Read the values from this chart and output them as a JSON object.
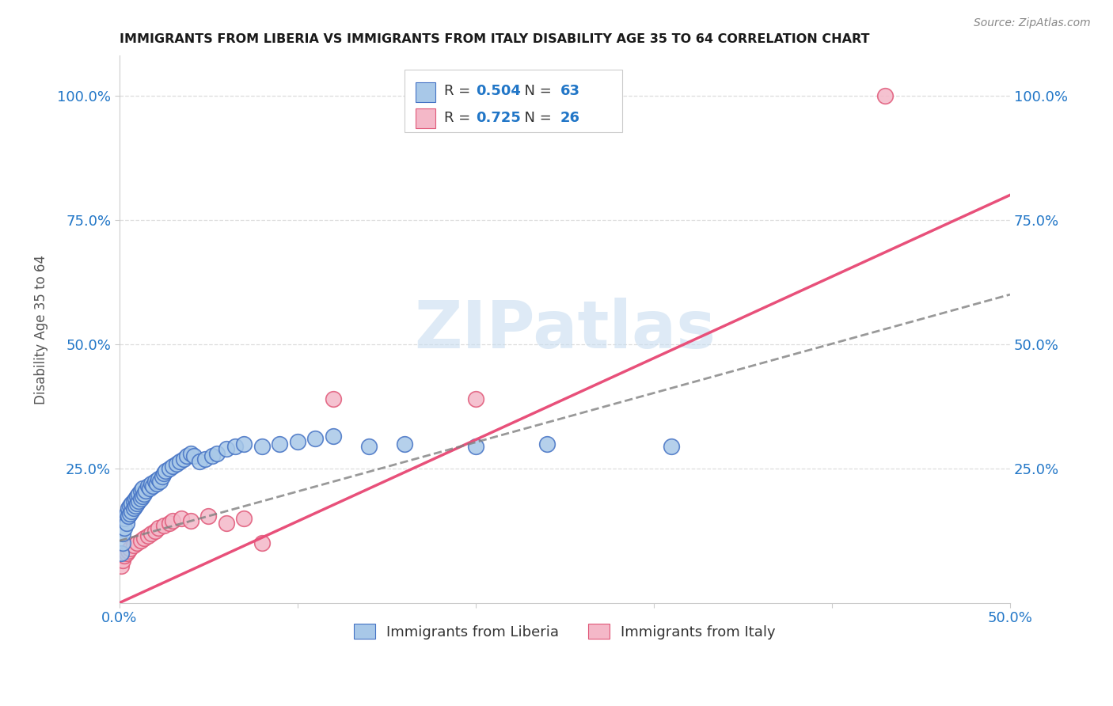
{
  "title": "IMMIGRANTS FROM LIBERIA VS IMMIGRANTS FROM ITALY DISABILITY AGE 35 TO 64 CORRELATION CHART",
  "source": "Source: ZipAtlas.com",
  "ylabel": "Disability Age 35 to 64",
  "xlim": [
    0.0,
    0.5
  ],
  "ylim": [
    -0.02,
    1.08
  ],
  "xticks": [
    0.0,
    0.1,
    0.2,
    0.3,
    0.4,
    0.5
  ],
  "xtick_labels": [
    "0.0%",
    "",
    "",
    "",
    "",
    "50.0%"
  ],
  "yticks": [
    0.25,
    0.5,
    0.75,
    1.0
  ],
  "ytick_labels": [
    "25.0%",
    "50.0%",
    "75.0%",
    "100.0%"
  ],
  "liberia_color": "#a8c8e8",
  "liberia_edge_color": "#4472c4",
  "italy_color": "#f4b8c8",
  "italy_edge_color": "#e05878",
  "liberia_R": 0.504,
  "liberia_N": 63,
  "italy_R": 0.725,
  "italy_N": 26,
  "liberia_line_color": "#808080",
  "liberia_line_style": "--",
  "italy_line_color": "#e8507a",
  "italy_line_style": "-",
  "liberia_x": [
    0.001,
    0.002,
    0.002,
    0.003,
    0.003,
    0.004,
    0.004,
    0.005,
    0.005,
    0.006,
    0.006,
    0.007,
    0.007,
    0.008,
    0.008,
    0.009,
    0.009,
    0.01,
    0.01,
    0.011,
    0.011,
    0.012,
    0.012,
    0.013,
    0.013,
    0.014,
    0.015,
    0.016,
    0.017,
    0.018,
    0.019,
    0.02,
    0.021,
    0.022,
    0.023,
    0.024,
    0.025,
    0.026,
    0.028,
    0.03,
    0.032,
    0.034,
    0.036,
    0.038,
    0.04,
    0.042,
    0.045,
    0.048,
    0.052,
    0.055,
    0.06,
    0.065,
    0.07,
    0.08,
    0.09,
    0.1,
    0.11,
    0.12,
    0.14,
    0.16,
    0.2,
    0.24,
    0.31
  ],
  "liberia_y": [
    0.08,
    0.1,
    0.12,
    0.13,
    0.15,
    0.14,
    0.16,
    0.155,
    0.17,
    0.16,
    0.175,
    0.165,
    0.18,
    0.17,
    0.185,
    0.175,
    0.19,
    0.18,
    0.195,
    0.185,
    0.2,
    0.19,
    0.205,
    0.195,
    0.21,
    0.2,
    0.205,
    0.215,
    0.21,
    0.22,
    0.215,
    0.225,
    0.22,
    0.23,
    0.225,
    0.235,
    0.24,
    0.245,
    0.25,
    0.255,
    0.26,
    0.265,
    0.27,
    0.275,
    0.28,
    0.275,
    0.265,
    0.27,
    0.275,
    0.28,
    0.29,
    0.295,
    0.3,
    0.295,
    0.3,
    0.305,
    0.31,
    0.315,
    0.295,
    0.3,
    0.295,
    0.3,
    0.295
  ],
  "italy_x": [
    0.001,
    0.002,
    0.003,
    0.004,
    0.005,
    0.006,
    0.008,
    0.01,
    0.012,
    0.014,
    0.016,
    0.018,
    0.02,
    0.022,
    0.025,
    0.028,
    0.03,
    0.035,
    0.04,
    0.05,
    0.06,
    0.07,
    0.08,
    0.12,
    0.2,
    0.43
  ],
  "italy_y": [
    0.055,
    0.065,
    0.075,
    0.08,
    0.085,
    0.09,
    0.095,
    0.1,
    0.105,
    0.11,
    0.115,
    0.12,
    0.125,
    0.13,
    0.135,
    0.14,
    0.145,
    0.15,
    0.145,
    0.155,
    0.14,
    0.15,
    0.1,
    0.39,
    0.39,
    1.0
  ],
  "liberia_line_x": [
    0.0,
    0.5
  ],
  "liberia_line_y": [
    0.105,
    0.6
  ],
  "italy_line_x": [
    0.0,
    0.5
  ],
  "italy_line_y": [
    -0.02,
    0.8
  ],
  "watermark_text": "ZIPatlas",
  "watermark_color": "#c8ddf0",
  "watermark_fontsize": 60,
  "background_color": "#ffffff",
  "grid_color": "#dddddd",
  "tick_color": "#2176c7",
  "title_fontsize": 11.5,
  "axis_label_fontsize": 12,
  "tick_fontsize": 13,
  "legend_fontsize": 13
}
